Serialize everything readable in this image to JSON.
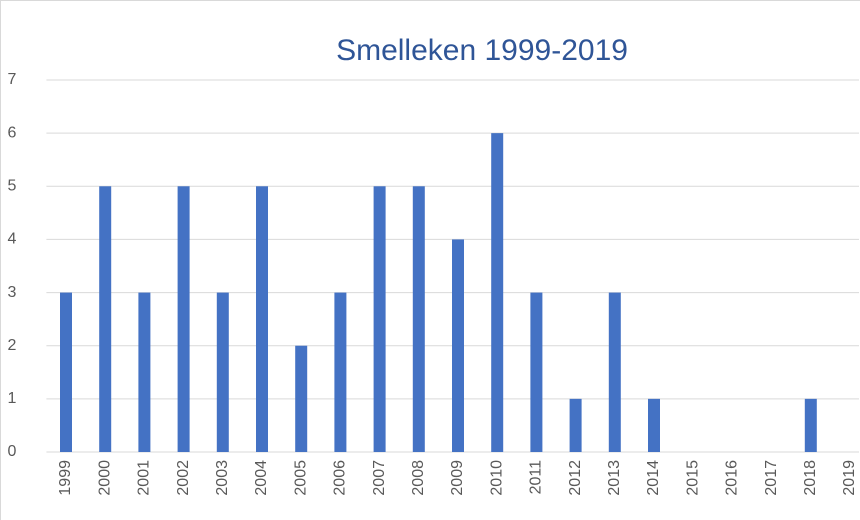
{
  "chart_data": {
    "type": "bar",
    "title": "Smelleken 1999-2019",
    "categories": [
      "1999",
      "2000",
      "2001",
      "2002",
      "2003",
      "2004",
      "2005",
      "2006",
      "2007",
      "2008",
      "2009",
      "2010",
      "2011",
      "2012",
      "2013",
      "2014",
      "2015",
      "2016",
      "2017",
      "2018",
      "2019"
    ],
    "values": [
      3,
      5,
      3,
      5,
      3,
      5,
      2,
      3,
      5,
      5,
      4,
      6,
      3,
      1,
      3,
      1,
      0,
      0,
      0,
      1,
      0
    ],
    "color": "#4472c4",
    "ylim": [
      0,
      7
    ],
    "yticks": [
      0,
      1,
      2,
      3,
      4,
      5,
      6,
      7
    ],
    "grid": true
  }
}
